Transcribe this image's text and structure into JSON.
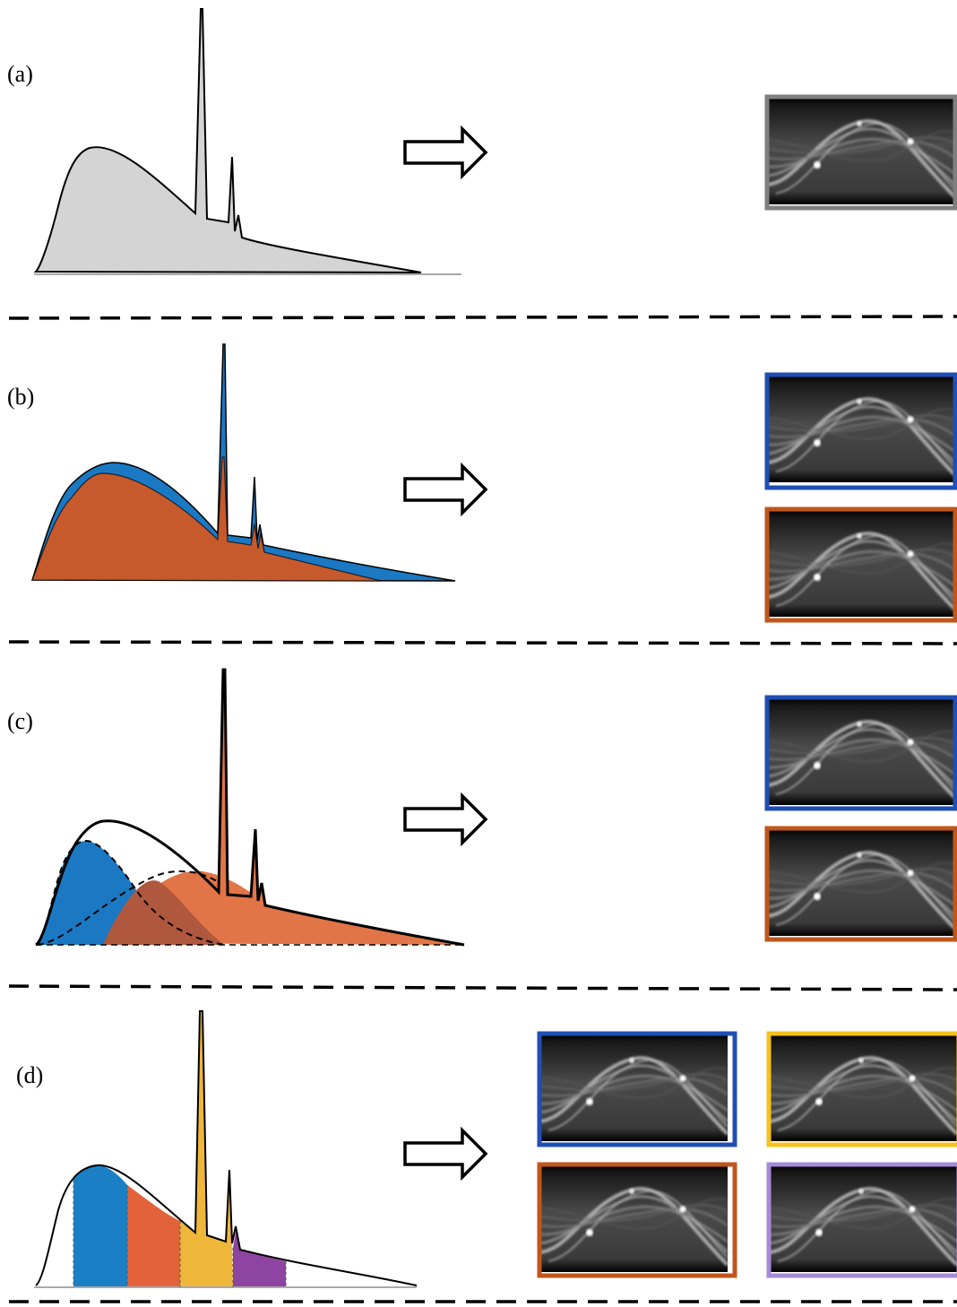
{
  "panels": [
    {
      "label": "(a)",
      "spectrum": "single-polychromatic",
      "sinograms": 1,
      "frame_colors": [
        "#7f7f7f"
      ]
    },
    {
      "label": "(b)",
      "spectrum": "dual-kvp",
      "sinograms": 2,
      "frame_colors": [
        "#1f4fb4",
        "#c0561b"
      ]
    },
    {
      "label": "(c)",
      "spectrum": "dual-layer-detector",
      "sinograms": 2,
      "frame_colors": [
        "#1f4fb4",
        "#c0561b"
      ]
    },
    {
      "label": "(d)",
      "spectrum": "photon-counting-bins",
      "sinograms": 4,
      "frame_colors": [
        "#1f4fb4",
        "#f5c21b",
        "#c0561b",
        "#a58bd6"
      ]
    }
  ],
  "colors": {
    "gray_fill": "#d4d4d4",
    "blue": "#1b78c3",
    "orange": "#c65a2c",
    "orange_light": "#e27547",
    "overlap": "#b0583e",
    "bin_blue": "#1b7fc6",
    "bin_orange": "#e2633a",
    "bin_yellow": "#efb73a",
    "bin_purple": "#8e44a1"
  },
  "icons": [
    "right-arrow-icon"
  ]
}
